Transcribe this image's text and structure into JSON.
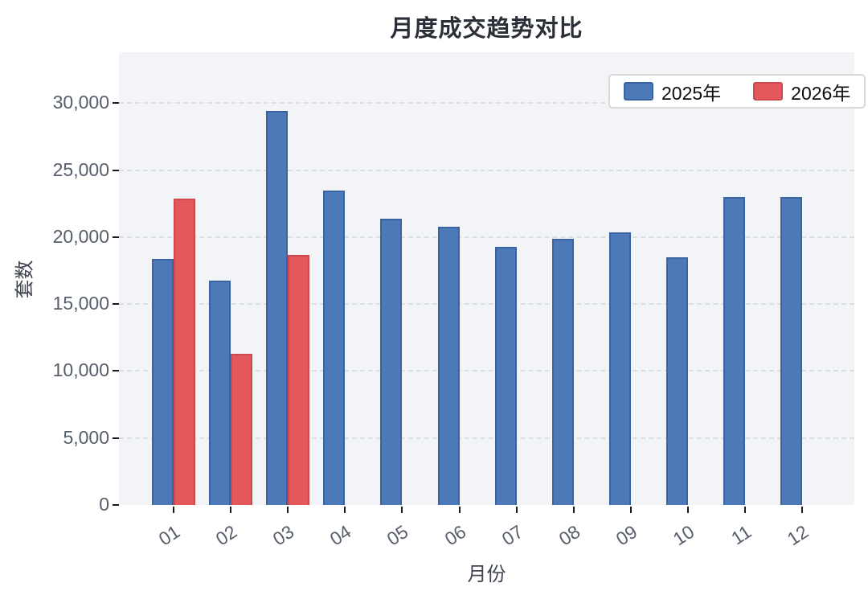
{
  "chart_data": {
    "type": "bar",
    "title": "月度成交趋势对比",
    "xlabel": "月份",
    "ylabel": "套数",
    "categories": [
      "01",
      "02",
      "03",
      "04",
      "05",
      "06",
      "07",
      "08",
      "09",
      "10",
      "11",
      "12"
    ],
    "series": [
      {
        "name": "2025年",
        "color": "#4d79b9",
        "border_color": "#3a63a2",
        "values": [
          18400,
          16750,
          29400,
          23450,
          21400,
          20750,
          19300,
          19900,
          20350,
          18500,
          23000,
          23000
        ]
      },
      {
        "name": "2026年",
        "color": "#e4585b",
        "border_color": "#cc4a4f",
        "values": [
          22900,
          11300,
          18650,
          null,
          null,
          null,
          null,
          null,
          null,
          null,
          null,
          null
        ]
      }
    ],
    "ylim": [
      0,
      33800
    ],
    "yticks": [
      0,
      5000,
      10000,
      15000,
      20000,
      25000,
      30000
    ],
    "grid": "horizontal-dashed",
    "legend_position": "top-right",
    "plot_background": "#f2f4f7",
    "gridline_color": "#d9dce1",
    "tick_label_color": "#565e6c",
    "title_color": "#2b2f38"
  }
}
